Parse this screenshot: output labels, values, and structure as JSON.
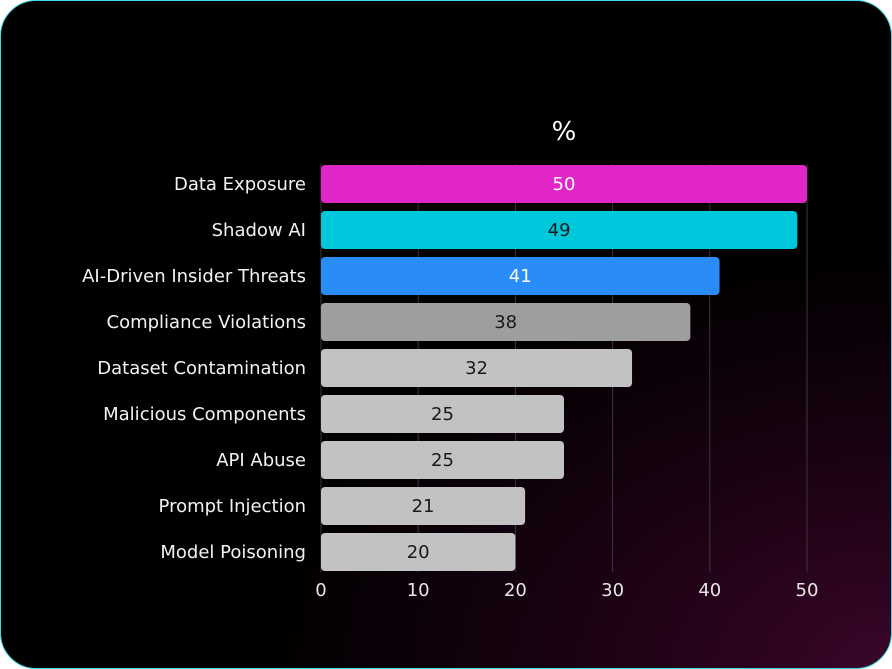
{
  "chart_data": {
    "type": "bar",
    "orientation": "horizontal",
    "title": "%",
    "categories": [
      "Data Exposure",
      "Shadow AI",
      "AI-Driven Insider Threats",
      "Compliance Violations",
      "Dataset Contamination",
      "Malicious Components",
      "API Abuse",
      "Prompt Injection",
      "Model Poisoning"
    ],
    "values": [
      50,
      49,
      41,
      38,
      32,
      25,
      25,
      21,
      20
    ],
    "bar_colors": [
      "#e026c6",
      "#00c8dc",
      "#2a8cf7",
      "#9e9e9e",
      "#c2c2c2",
      "#c2c2c2",
      "#c2c2c2",
      "#c2c2c2",
      "#c2c2c2"
    ],
    "value_label_colors": [
      "#ffffff",
      "#1a1a1a",
      "#ffffff",
      "#1a1a1a",
      "#1a1a1a",
      "#1a1a1a",
      "#1a1a1a",
      "#1a1a1a",
      "#1a1a1a"
    ],
    "xlim": [
      0,
      50
    ],
    "xticks": [
      0,
      10,
      20,
      30,
      40,
      50
    ],
    "grid": true,
    "xlabel": "",
    "ylabel": ""
  },
  "theme": {
    "grid_color": "#3a3a3a",
    "border_color": "#3fd6e6"
  }
}
